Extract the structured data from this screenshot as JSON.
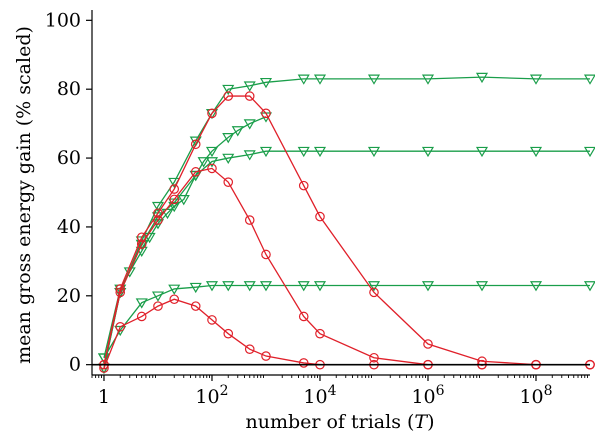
{
  "chart_data": {
    "type": "line",
    "xlabel": "number of trials (",
    "xlabel_var": "T",
    "xlabel_close": ")",
    "ylabel": "mean gross energy gain (% scaled)",
    "xscale": "log",
    "xlim": [
      0.6,
      1000000000
    ],
    "ylim": [
      -3,
      103
    ],
    "xticks": [
      {
        "value": 1,
        "base": "1",
        "exp": ""
      },
      {
        "value": 100,
        "base": "10",
        "exp": "2"
      },
      {
        "value": 10000,
        "base": "10",
        "exp": "4"
      },
      {
        "value": 1000000,
        "base": "10",
        "exp": "6"
      },
      {
        "value": 100000000,
        "base": "10",
        "exp": "8"
      }
    ],
    "yticks": [
      0,
      20,
      40,
      60,
      80,
      100
    ],
    "reference_line": 0,
    "colors": {
      "green": "#1a9e4a",
      "red": "#e0202a",
      "axis": "#000000"
    },
    "series": [
      {
        "color": "green",
        "marker": "triangle-down",
        "x": [
          1,
          2,
          3,
          5,
          7,
          10,
          15,
          20,
          30,
          50,
          70,
          100,
          200,
          300,
          500,
          1000
        ],
        "y": [
          2,
          22,
          27,
          33,
          37,
          41,
          44,
          46,
          48,
          55,
          59,
          62,
          66,
          68,
          70,
          72
        ]
      },
      {
        "color": "green",
        "marker": "triangle-down",
        "x": [
          1,
          2,
          5,
          10,
          20,
          50,
          100,
          200,
          500,
          1000,
          5000,
          10000,
          100000,
          1000000,
          10000000,
          100000000,
          1000000000
        ],
        "y": [
          -1,
          21,
          36,
          46,
          53,
          65,
          73,
          80,
          81,
          82,
          83,
          83,
          83,
          83,
          83.5,
          83,
          83
        ]
      },
      {
        "color": "green",
        "marker": "triangle-down",
        "x": [
          1,
          2,
          5,
          10,
          20,
          50,
          100,
          200,
          500,
          1000,
          5000,
          10000,
          100000,
          1000000,
          10000000,
          100000000,
          1000000000
        ],
        "y": [
          -1,
          21,
          35,
          43,
          47,
          55,
          59,
          60,
          61,
          62,
          62,
          62,
          62,
          62,
          62,
          62,
          62
        ]
      },
      {
        "color": "green",
        "marker": "triangle-down",
        "x": [
          1,
          2,
          5,
          10,
          20,
          50,
          100,
          200,
          500,
          1000,
          5000,
          10000,
          100000,
          1000000,
          10000000,
          100000000,
          1000000000
        ],
        "y": [
          2,
          10,
          18,
          20,
          22,
          22.5,
          23,
          23,
          23,
          23,
          23,
          23,
          23,
          23,
          23,
          23,
          23
        ]
      },
      {
        "color": "red",
        "marker": "circle",
        "x": [
          1,
          2,
          5,
          10,
          20,
          50,
          100,
          200,
          500,
          1000,
          5000,
          10000,
          100000,
          1000000,
          10000000,
          100000000,
          1000000000
        ],
        "y": [
          0,
          22,
          37,
          44,
          51,
          64,
          73,
          78,
          78,
          73,
          52,
          43,
          21,
          6,
          1,
          0,
          0
        ]
      },
      {
        "color": "red",
        "marker": "circle",
        "x": [
          1,
          2,
          5,
          10,
          20,
          50,
          100,
          200,
          500,
          1000,
          5000,
          10000,
          100000,
          1000000,
          10000000,
          100000000,
          1000000000
        ],
        "y": [
          0,
          21,
          35,
          42,
          48,
          56,
          57,
          53,
          42,
          32,
          14,
          9,
          2,
          0,
          0,
          0,
          0
        ]
      },
      {
        "color": "red",
        "marker": "circle",
        "x": [
          1,
          2,
          5,
          10,
          20,
          50,
          100,
          200,
          500,
          1000,
          5000,
          10000,
          100000,
          1000000,
          10000000,
          100000000,
          1000000000
        ],
        "y": [
          -1,
          11,
          14,
          17,
          19,
          17,
          13,
          9,
          4.5,
          2.5,
          0.5,
          0,
          0,
          0,
          0,
          0,
          0
        ]
      }
    ]
  }
}
